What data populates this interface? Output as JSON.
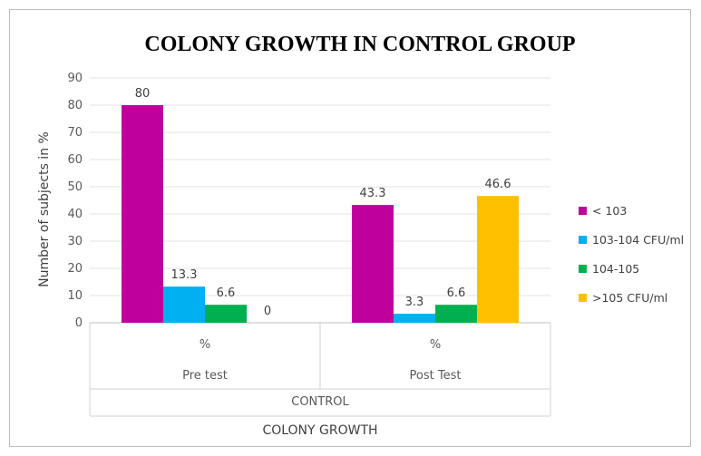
{
  "chart_data": {
    "type": "bar",
    "title": "COLONY GROWTH IN CONTROL GROUP",
    "ylabel": "Number of subjects in %",
    "ylim": [
      0,
      90
    ],
    "ytick_step": 10,
    "grid": true,
    "legend_position": "right",
    "x_levels": {
      "unit": [
        "%",
        "%"
      ],
      "categories": [
        "Pre test",
        "Post Test"
      ],
      "group": "CONTROL",
      "axis_title": "COLONY GROWTH"
    },
    "series": [
      {
        "name": "< 103",
        "color": "#c0009c",
        "values": [
          80,
          43.3
        ]
      },
      {
        "name": "103-104 CFU/ml",
        "color": "#00b0f0",
        "values": [
          13.3,
          3.3
        ]
      },
      {
        "name": "104-105",
        "color": "#00b050",
        "values": [
          6.6,
          6.6
        ]
      },
      {
        "name": ">105 CFU/ml",
        "color": "#ffc000",
        "values": [
          0,
          46.6
        ]
      }
    ]
  }
}
